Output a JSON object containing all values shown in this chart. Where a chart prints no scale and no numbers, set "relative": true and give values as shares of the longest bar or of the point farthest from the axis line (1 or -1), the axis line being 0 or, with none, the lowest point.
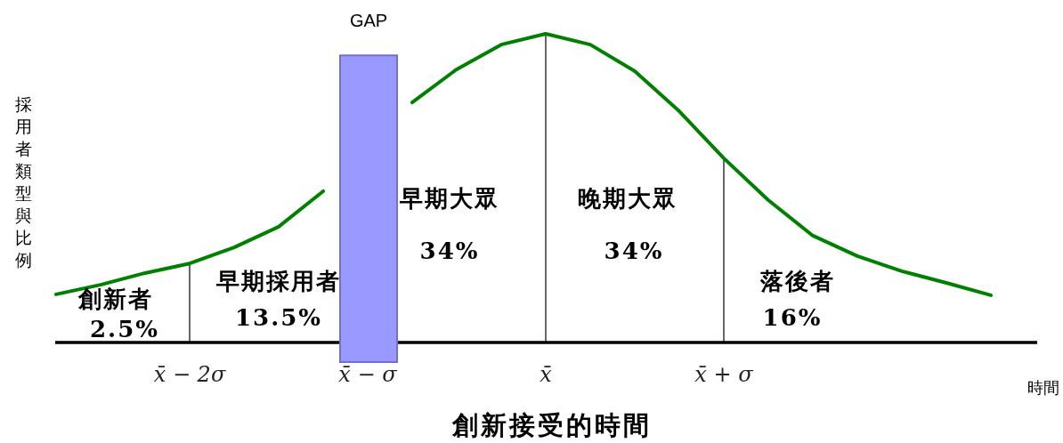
{
  "chart_data": {
    "type": "line",
    "relative": true,
    "title": "創新接受的時間",
    "xlabel": "時間",
    "ylabel": "採用者類型與比例",
    "categories": [
      null,
      null,
      null,
      "x̄ − 2σ",
      null,
      null,
      null,
      "x̄ − σ",
      null,
      null,
      null,
      "x̄",
      null,
      null,
      null,
      "x̄ + σ",
      null,
      null,
      null,
      null,
      null,
      null,
      null
    ],
    "series": [
      {
        "color": "#008000",
        "values": [
          0.156,
          0.187,
          0.225,
          0.256,
          0.308,
          0.375,
          0.49,
          null,
          0.778,
          0.885,
          0.965,
          1.0,
          0.965,
          0.879,
          0.749,
          0.597,
          0.461,
          0.346,
          0.28,
          0.231,
          0.193,
          0.153,
          null
        ]
      }
    ],
    "ref_lines": [
      {
        "axis": "x",
        "value": "x̄ − 2σ"
      },
      {
        "axis": "x",
        "value": "x̄"
      },
      {
        "axis": "x",
        "value": "x̄ + σ"
      }
    ],
    "bands": [
      {
        "axis": "x",
        "from": "x̄ − σ",
        "to": "x̄ − σ",
        "label": "GAP",
        "color": "#9999ff"
      }
    ],
    "annotations": [
      "創新者",
      "2.5%",
      "早期採用者",
      "13.5%",
      "早期大眾",
      "34%",
      "晚期大眾",
      "34%",
      "落後者",
      "16%"
    ]
  }
}
